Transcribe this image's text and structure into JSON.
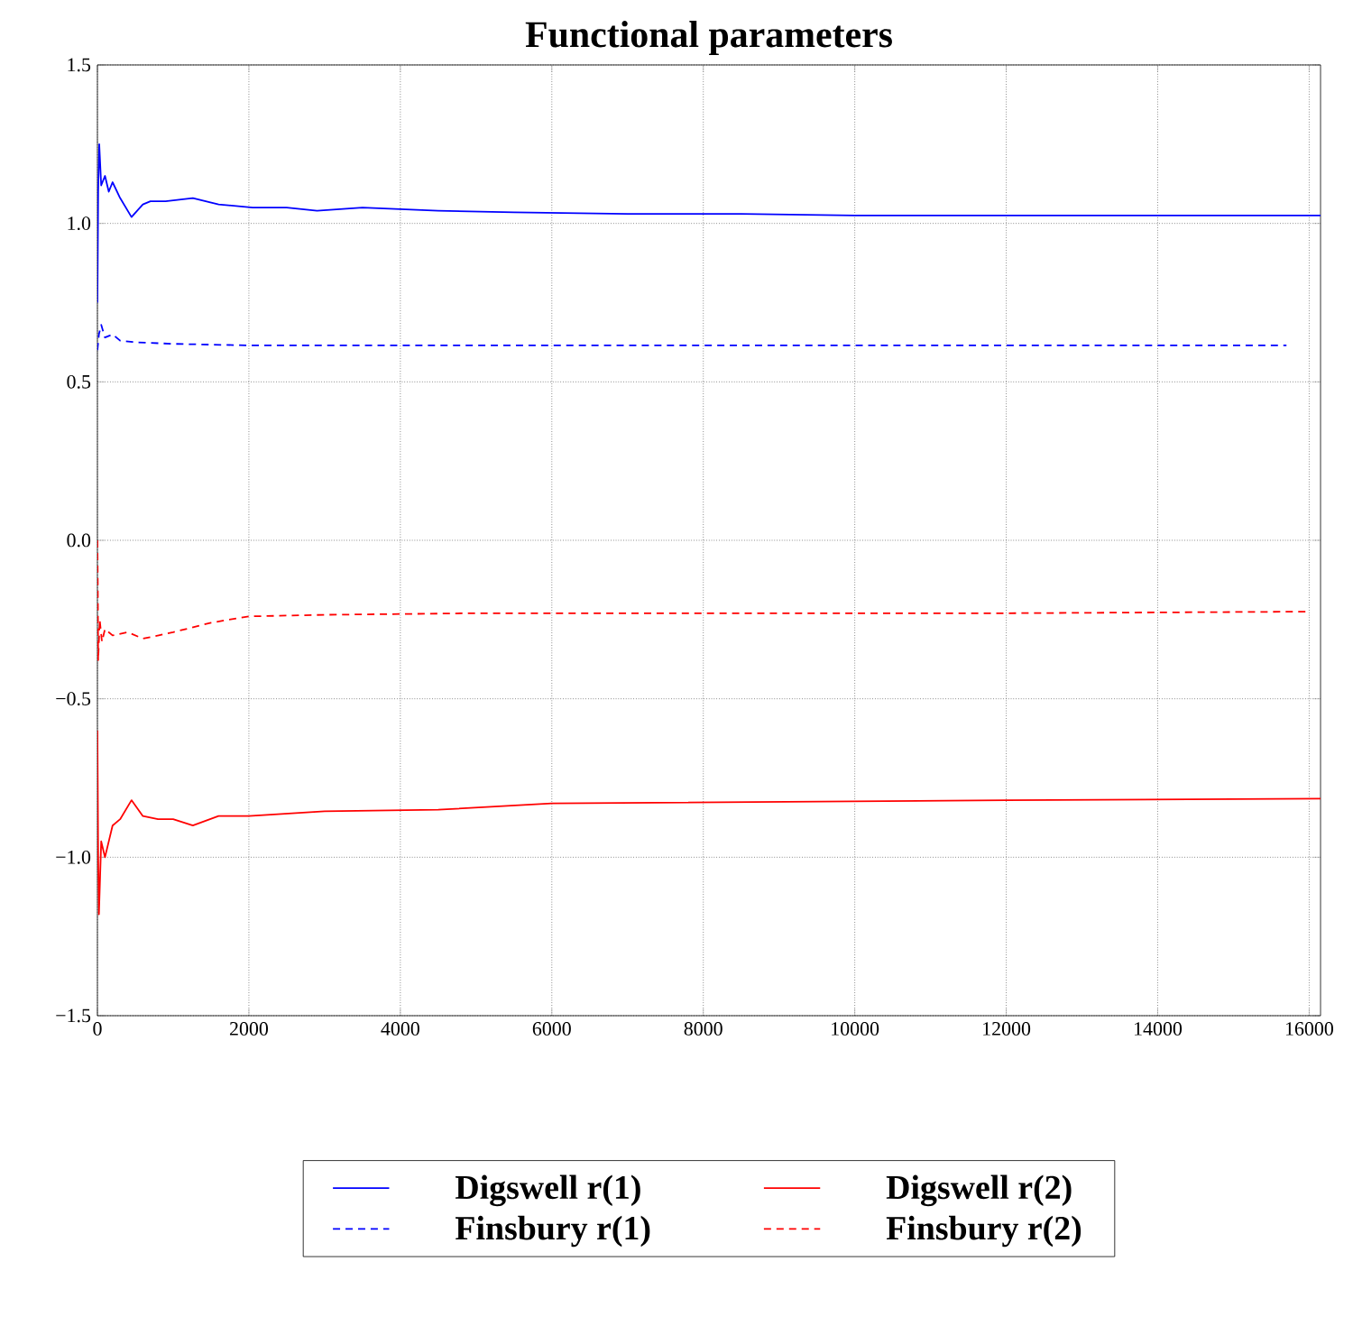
{
  "chart_data": {
    "type": "line",
    "title": "Functional parameters",
    "xlim": [
      0,
      16150
    ],
    "ylim": [
      -1.5,
      1.5
    ],
    "xticks": [
      0,
      2000,
      4000,
      6000,
      8000,
      10000,
      12000,
      14000,
      16000
    ],
    "yticks": [
      {
        "value": -1.5,
        "label": "−1.5"
      },
      {
        "value": -1.0,
        "label": "−1.0"
      },
      {
        "value": -0.5,
        "label": "−0.5"
      },
      {
        "value": 0,
        "label": "0.0"
      },
      {
        "value": 0.5,
        "label": "0.5"
      },
      {
        "value": 1.0,
        "label": "1.0"
      },
      {
        "value": 1.5,
        "label": "1.5"
      }
    ],
    "grid": true,
    "legend": "bottom",
    "series": [
      {
        "name": "Digswell r(1)",
        "color": "#0000ff",
        "line_style": "solid",
        "x": [
          0,
          10,
          24,
          50,
          100,
          150,
          200,
          300,
          450,
          600,
          700,
          900,
          1260,
          1600,
          2050,
          2500,
          2900,
          3500,
          4500,
          5500,
          7000,
          8500,
          10000,
          12000,
          14000,
          16150
        ],
        "values": [
          0.75,
          1.1,
          1.25,
          1.12,
          1.15,
          1.1,
          1.13,
          1.08,
          1.02,
          1.06,
          1.07,
          1.07,
          1.08,
          1.06,
          1.05,
          1.05,
          1.04,
          1.05,
          1.04,
          1.035,
          1.03,
          1.03,
          1.025,
          1.025,
          1.025,
          1.025
        ]
      },
      {
        "name": "Digswell r(2)",
        "color": "#ff0000",
        "line_style": "solid",
        "x": [
          0,
          10,
          20,
          50,
          100,
          200,
          300,
          450,
          600,
          800,
          1000,
          1260,
          1600,
          2000,
          3000,
          4500,
          6000,
          9000,
          12000,
          16150
        ],
        "values": [
          -0.6,
          -1.0,
          -1.18,
          -0.95,
          -1.0,
          -0.9,
          -0.88,
          -0.82,
          -0.87,
          -0.88,
          -0.88,
          -0.9,
          -0.87,
          -0.87,
          -0.855,
          -0.85,
          -0.83,
          -0.825,
          -0.82,
          -0.815
        ]
      },
      {
        "name": "Finsbury r(1)",
        "color": "#0000ff",
        "line_style": "dashed",
        "x": [
          0,
          20,
          50,
          100,
          200,
          300,
          500,
          1000,
          2000,
          4000,
          8000,
          12000,
          15700
        ],
        "values": [
          0.6,
          0.65,
          0.68,
          0.64,
          0.65,
          0.63,
          0.625,
          0.62,
          0.615,
          0.615,
          0.615,
          0.615,
          0.615
        ]
      },
      {
        "name": "Finsbury r(2)",
        "color": "#ff0000",
        "line_style": "dashed",
        "x": [
          0,
          5,
          10,
          30,
          60,
          100,
          200,
          400,
          600,
          810,
          1000,
          1500,
          2000,
          3000,
          5000,
          8000,
          12000,
          16000
        ],
        "values": [
          0.0,
          -0.15,
          -0.38,
          -0.25,
          -0.32,
          -0.28,
          -0.3,
          -0.29,
          -0.31,
          -0.3,
          -0.29,
          -0.26,
          -0.24,
          -0.235,
          -0.23,
          -0.23,
          -0.23,
          -0.225
        ]
      }
    ]
  }
}
